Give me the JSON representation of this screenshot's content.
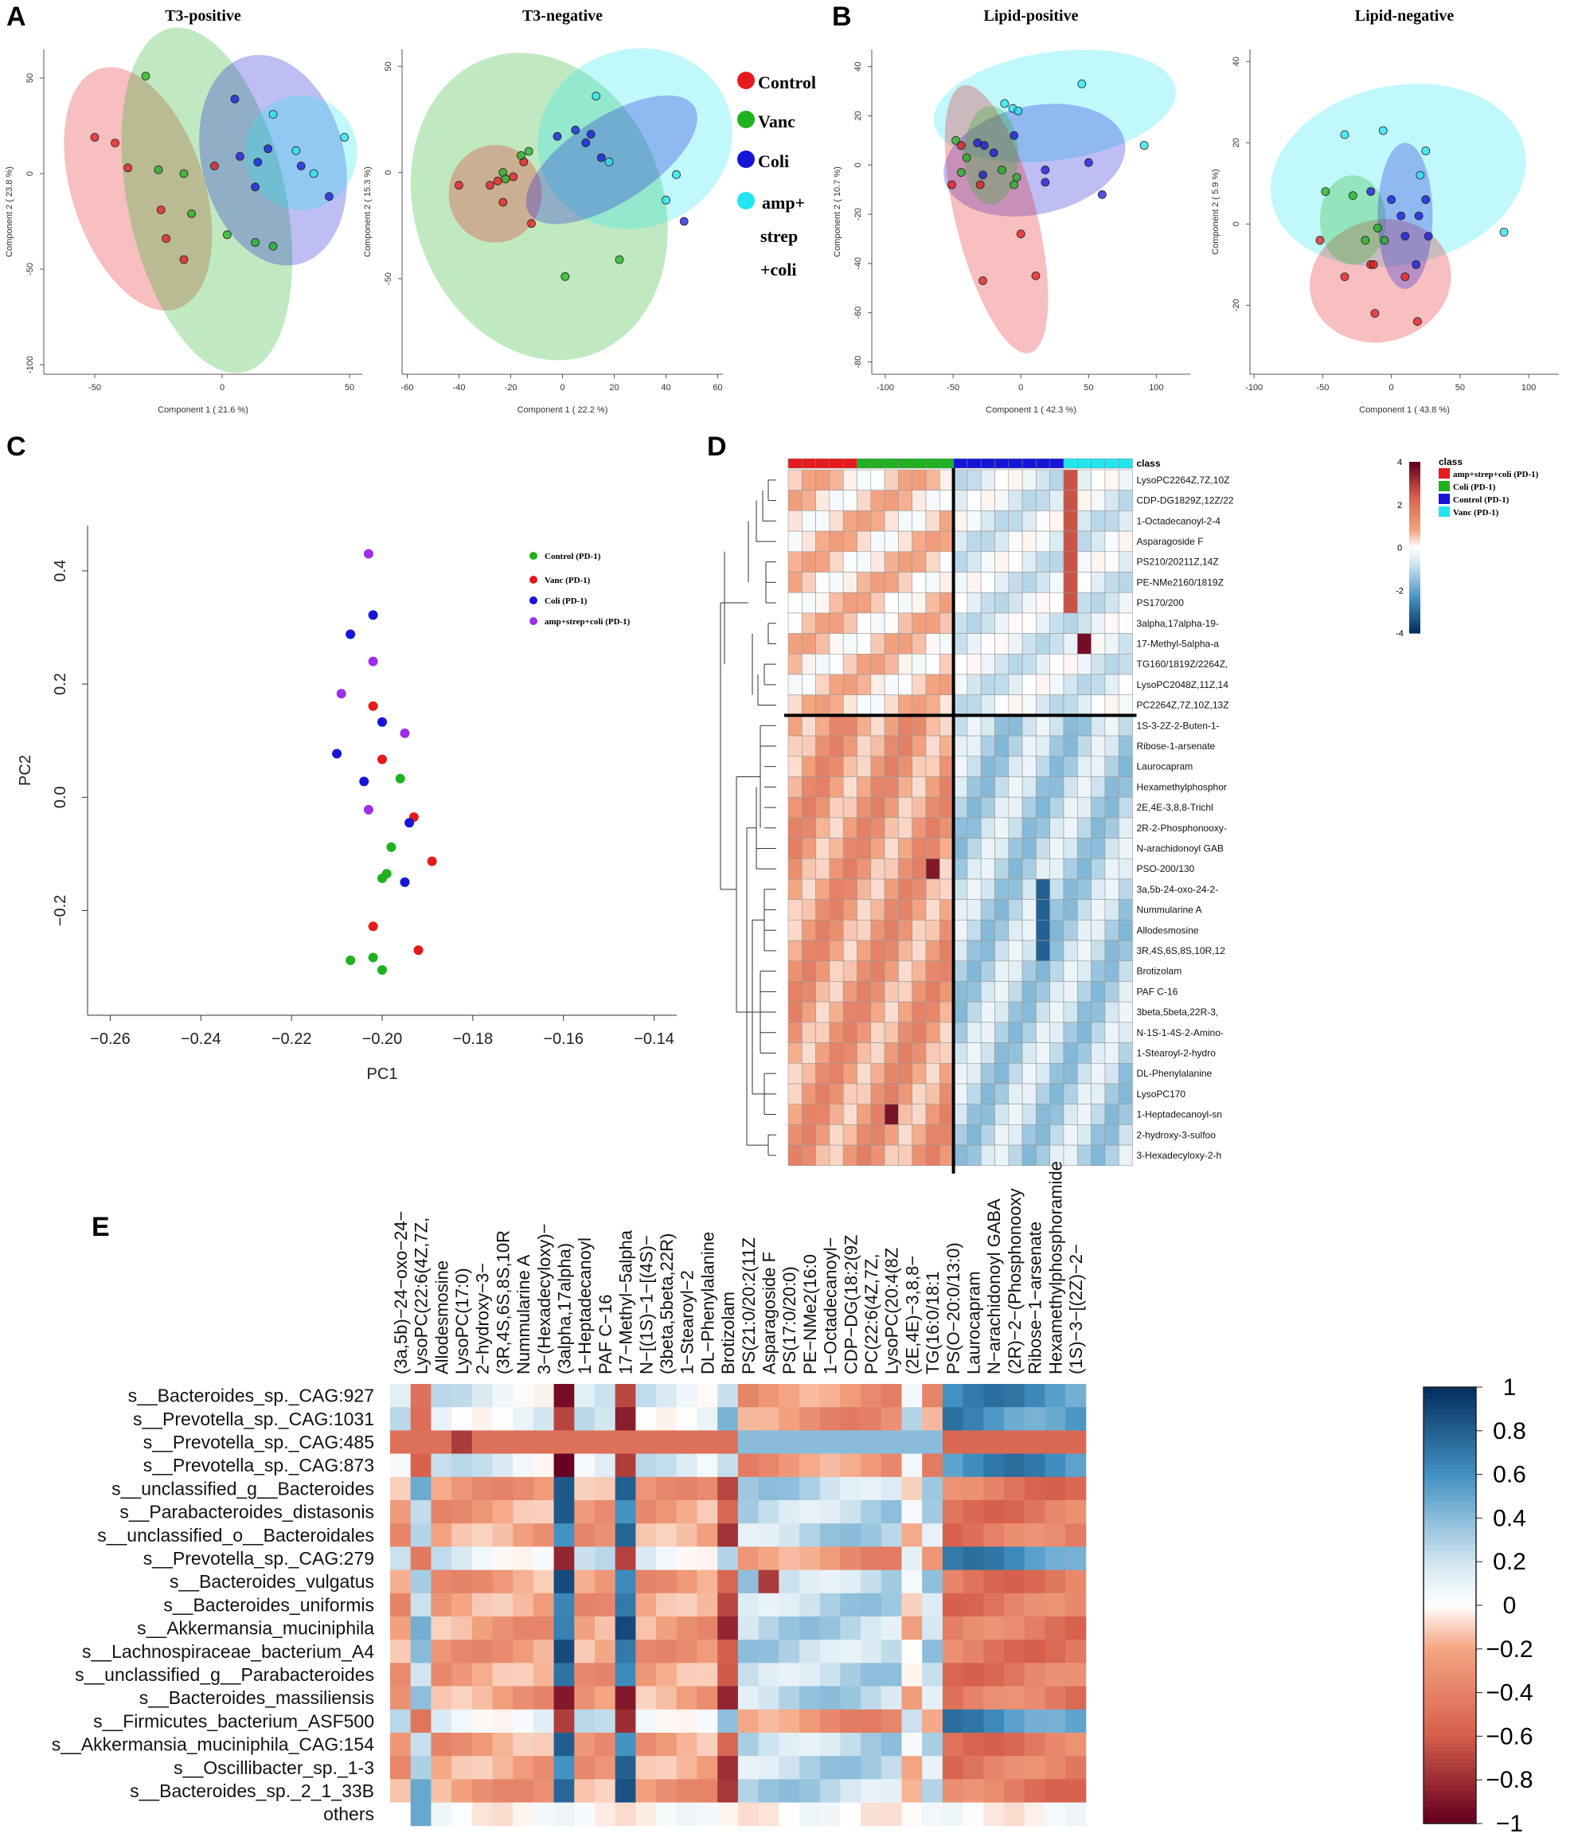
{
  "panels": {
    "a": "A",
    "b": "B",
    "c": "C",
    "d": "D",
    "e": "E"
  },
  "colors": {
    "red": "#e41a1c",
    "green": "#1fb11f",
    "blue": "#1515d8",
    "cyan": "#22e5f0",
    "purple": "#9b30e8"
  },
  "legend_a": [
    "Control",
    "Vanc",
    "Coli",
    "amp+",
    "strep",
    "+coli"
  ],
  "chart_data": [
    {
      "type": "scatter",
      "title": "T3-positive",
      "xlabel": "Component 1 ( 21.6 %)",
      "ylabel": "Component 2 ( 23.8 %)",
      "xlim": [
        -70,
        55
      ],
      "ylim": [
        -105,
        65
      ],
      "xticks": [
        -50,
        0,
        50
      ],
      "yticks": [
        -100,
        -50,
        0,
        50
      ],
      "series": [
        {
          "name": "red",
          "points": [
            [
              -50,
              19
            ],
            [
              -42,
              16
            ],
            [
              -37,
              3
            ],
            [
              -24,
              -19
            ],
            [
              -22,
              -34
            ],
            [
              -15,
              -45
            ],
            [
              -3,
              4
            ]
          ]
        },
        {
          "name": "green",
          "points": [
            [
              -30,
              51
            ],
            [
              -25,
              2
            ],
            [
              -15,
              0
            ],
            [
              -12,
              -21
            ],
            [
              2,
              -32
            ],
            [
              13,
              -36
            ],
            [
              20,
              -38
            ]
          ]
        },
        {
          "name": "blue",
          "points": [
            [
              5,
              39
            ],
            [
              7,
              9
            ],
            [
              13,
              -7
            ],
            [
              14,
              6
            ],
            [
              18,
              13
            ],
            [
              31,
              4
            ],
            [
              42,
              -12
            ]
          ]
        },
        {
          "name": "cyan",
          "points": [
            [
              20,
              31
            ],
            [
              29,
              12
            ],
            [
              36,
              0
            ],
            [
              48,
              19
            ]
          ]
        }
      ],
      "ellipses": [
        {
          "c": "red",
          "cx": -33,
          "cy": -8,
          "rx": 26,
          "ry": 66,
          "rot": -18
        },
        {
          "c": "green",
          "cx": -6,
          "cy": -14,
          "rx": 31,
          "ry": 92,
          "rot": -12
        },
        {
          "c": "blue",
          "cx": 20,
          "cy": 7,
          "rx": 28,
          "ry": 56,
          "rot": -14
        },
        {
          "c": "cyan",
          "cx": 31,
          "cy": 11,
          "rx": 22,
          "ry": 30,
          "rot": 0
        }
      ]
    },
    {
      "type": "scatter",
      "title": "T3-negative",
      "xlabel": "Component 1 ( 22.2 %)",
      "ylabel": "Component 2 ( 15.3 %)",
      "xlim": [
        -62,
        62
      ],
      "ylim": [
        -95,
        58
      ],
      "xticks": [
        -60,
        -40,
        -20,
        0,
        20,
        40,
        60
      ],
      "yticks": [
        -50,
        0,
        50
      ],
      "series": [
        {
          "name": "red",
          "points": [
            [
              -40,
              -6
            ],
            [
              -28,
              -6
            ],
            [
              -25,
              -4
            ],
            [
              -23,
              -14
            ],
            [
              -19,
              -2
            ],
            [
              -15,
              5
            ],
            [
              -12,
              -24
            ]
          ]
        },
        {
          "name": "green",
          "points": [
            [
              -23,
              0
            ],
            [
              -22,
              -3
            ],
            [
              -16,
              8
            ],
            [
              -13,
              10
            ],
            [
              1,
              -49
            ],
            [
              22,
              -41
            ]
          ]
        },
        {
          "name": "blue",
          "points": [
            [
              -2,
              17
            ],
            [
              5,
              20
            ],
            [
              9,
              14
            ],
            [
              11,
              18
            ],
            [
              15,
              7
            ],
            [
              47,
              -23
            ]
          ]
        },
        {
          "name": "cyan",
          "points": [
            [
              13,
              36
            ],
            [
              18,
              5
            ],
            [
              40,
              -13
            ],
            [
              44,
              -1
            ]
          ]
        }
      ],
      "ellipses": [
        {
          "c": "green",
          "cx": -9,
          "cy": -16,
          "rx": 48,
          "ry": 74,
          "rot": -20
        },
        {
          "c": "red",
          "cx": -26,
          "cy": -10,
          "rx": 18,
          "ry": 23,
          "rot": 0
        },
        {
          "c": "cyan",
          "cx": 28,
          "cy": 16,
          "rx": 38,
          "ry": 42,
          "rot": -20
        },
        {
          "c": "blue",
          "cx": 19,
          "cy": 6,
          "rx": 38,
          "ry": 20,
          "rot": -33
        }
      ]
    },
    {
      "type": "scatter",
      "title": "Lipid-positive",
      "xlabel": "Component 1 ( 42.3 %)",
      "ylabel": "Component 2 ( 10.7 %)",
      "xlim": [
        -110,
        125
      ],
      "ylim": [
        -85,
        47
      ],
      "xticks": [
        -100,
        -50,
        0,
        50,
        100
      ],
      "yticks": [
        -80,
        -60,
        -40,
        -20,
        0,
        20,
        40
      ],
      "series": [
        {
          "name": "red",
          "points": [
            [
              -51,
              -8
            ],
            [
              -44,
              8
            ],
            [
              -30,
              -8
            ],
            [
              -28,
              -47
            ],
            [
              0,
              -28
            ],
            [
              11,
              -45
            ]
          ]
        },
        {
          "name": "green",
          "points": [
            [
              -48,
              10
            ],
            [
              -44,
              -3
            ],
            [
              -40,
              3
            ],
            [
              -14,
              -2
            ],
            [
              -5,
              -8
            ],
            [
              -3,
              -5
            ]
          ]
        },
        {
          "name": "blue",
          "points": [
            [
              -32,
              9
            ],
            [
              -28,
              -4
            ],
            [
              -27,
              8
            ],
            [
              -20,
              5
            ],
            [
              -5,
              12
            ],
            [
              18,
              -7
            ],
            [
              18,
              -2
            ],
            [
              50,
              1
            ],
            [
              60,
              -12
            ]
          ]
        },
        {
          "name": "cyan",
          "points": [
            [
              -12,
              25
            ],
            [
              -6,
              23
            ],
            [
              -2,
              22
            ],
            [
              45,
              33
            ],
            [
              91,
              8
            ]
          ]
        }
      ],
      "ellipses": [
        {
          "c": "cyan",
          "cx": 25,
          "cy": 24,
          "rx": 90,
          "ry": 22,
          "rot": -8
        },
        {
          "c": "blue",
          "cx": 10,
          "cy": 2,
          "rx": 68,
          "ry": 22,
          "rot": -12
        },
        {
          "c": "red",
          "cx": -18,
          "cy": -22,
          "rx": 30,
          "ry": 56,
          "rot": -14
        },
        {
          "c": "green",
          "cx": -22,
          "cy": 4,
          "rx": 20,
          "ry": 20,
          "rot": 0
        }
      ]
    },
    {
      "type": "scatter",
      "title": "Lipid-negative",
      "xlabel": "Component 1 ( 43.8 %)",
      "ylabel": "Component 2 ( 5.9 %)",
      "xlim": [
        -103,
        122
      ],
      "ylim": [
        -37,
        43
      ],
      "xticks": [
        -100,
        -50,
        0,
        50,
        100
      ],
      "yticks": [
        -20,
        0,
        20,
        40
      ],
      "series": [
        {
          "name": "red",
          "points": [
            [
              -52,
              -4
            ],
            [
              -34,
              -13
            ],
            [
              -15,
              -10
            ],
            [
              -13,
              -10
            ],
            [
              -12,
              -22
            ],
            [
              10,
              -13
            ],
            [
              19,
              -24
            ]
          ]
        },
        {
          "name": "green",
          "points": [
            [
              -48,
              8
            ],
            [
              -28,
              7
            ],
            [
              -19,
              -4
            ],
            [
              -10,
              -1
            ],
            [
              -5,
              -4
            ]
          ]
        },
        {
          "name": "blue",
          "points": [
            [
              -15,
              8
            ],
            [
              0,
              6
            ],
            [
              7,
              2
            ],
            [
              10,
              -3
            ],
            [
              18,
              -10
            ],
            [
              20,
              2
            ],
            [
              25,
              6
            ],
            [
              27,
              -3
            ]
          ]
        },
        {
          "name": "cyan",
          "points": [
            [
              -34,
              22
            ],
            [
              -6,
              23
            ],
            [
              25,
              18
            ],
            [
              21,
              12
            ],
            [
              82,
              -2
            ]
          ]
        }
      ],
      "ellipses": [
        {
          "c": "cyan",
          "cx": 5,
          "cy": 12,
          "rx": 94,
          "ry": 22,
          "rot": -12
        },
        {
          "c": "red",
          "cx": -8,
          "cy": -14,
          "rx": 52,
          "ry": 15,
          "rot": -15
        },
        {
          "c": "green",
          "cx": -28,
          "cy": 1,
          "rx": 24,
          "ry": 11,
          "rot": 0
        },
        {
          "c": "blue",
          "cx": 10,
          "cy": 2,
          "rx": 20,
          "ry": 18,
          "rot": 0
        }
      ]
    },
    {
      "type": "scatter",
      "xlabel": "PC1",
      "ylabel": "PC2",
      "xlim": [
        -0.265,
        -0.135
      ],
      "ylim": [
        -0.385,
        0.48
      ],
      "xticks": [
        -0.26,
        -0.24,
        -0.22,
        -0.2,
        -0.18,
        -0.16,
        -0.14
      ],
      "yticks": [
        -0.2,
        0.0,
        0.2,
        0.4
      ],
      "legend": [
        "Control (PD-1)",
        "Vanc (PD-1)",
        "Coli (PD-1)",
        "amp+strep+coli (PD-1)"
      ],
      "series": [
        {
          "name": "Control (PD-1)",
          "c": "green",
          "points": [
            [
              -0.196,
              0.033
            ],
            [
              -0.198,
              -0.088
            ],
            [
              -0.199,
              -0.135
            ],
            [
              -0.2,
              -0.143
            ],
            [
              -0.2,
              -0.305
            ],
            [
              -0.202,
              -0.283
            ],
            [
              -0.207,
              -0.288
            ]
          ]
        },
        {
          "name": "Vanc (PD-1)",
          "c": "red",
          "points": [
            [
              -0.202,
              0.161
            ],
            [
              -0.2,
              0.067
            ],
            [
              -0.193,
              -0.035
            ],
            [
              -0.189,
              -0.113
            ],
            [
              -0.202,
              -0.228
            ],
            [
              -0.192,
              -0.27
            ]
          ]
        },
        {
          "name": "Coli (PD-1)",
          "c": "blue",
          "points": [
            [
              -0.202,
              0.322
            ],
            [
              -0.207,
              0.288
            ],
            [
              -0.2,
              0.133
            ],
            [
              -0.21,
              0.077
            ],
            [
              -0.204,
              0.028
            ],
            [
              -0.194,
              -0.045
            ],
            [
              -0.195,
              -0.15
            ]
          ]
        },
        {
          "name": "amp+strep+coli (PD-1)",
          "c": "purple",
          "points": [
            [
              -0.203,
              0.43
            ],
            [
              -0.202,
              0.24
            ],
            [
              -0.209,
              0.183
            ],
            [
              -0.195,
              0.113
            ],
            [
              -0.203,
              -0.022
            ]
          ]
        }
      ]
    },
    {
      "type": "heatmap",
      "name": "D",
      "class_header": "class",
      "legend_title": "class",
      "legend": [
        "amp+strep+coli (PD-1)",
        "Coli (PD-1)",
        "Control (PD-1)",
        "Vanc (PD-1)"
      ],
      "scale_ticks": [
        "4",
        "2",
        "0",
        "-2",
        "-4"
      ],
      "column_classes": [
        "red",
        "red",
        "red",
        "red",
        "red",
        "green",
        "green",
        "green",
        "green",
        "green",
        "green",
        "green",
        "blue",
        "blue",
        "blue",
        "blue",
        "blue",
        "blue",
        "blue",
        "blue",
        "cyan",
        "cyan",
        "cyan",
        "cyan",
        "cyan"
      ],
      "rows": [
        "LysoPC2264Z,7Z,10Z",
        "CDP-DG1829Z,12Z/22",
        "1-Octadecanoyl-2-4",
        "Asparagoside F",
        "PS210/20211Z,14Z",
        "PE-NMe2160/1819Z",
        "PS170/200",
        "3alpha,17alpha-19-",
        "17-Methyl-5alpha-a",
        "TG160/1819Z/2264Z,",
        "LysoPC2048Z,11Z,14",
        "PC2264Z,7Z,10Z,13Z",
        "1S-3-2Z-2-Buten-1-",
        "Ribose-1-arsenate",
        "Laurocapram",
        "Hexamethylphosphor",
        "2E,4E-3,8,8-Trichl",
        "2R-2-Phosphonooxy-",
        "N-arachidonoyl GAB",
        "PSO-200/130",
        "3a,5b-24-oxo-24-2-",
        "Nummularine A",
        "Allodesmosine",
        "3R,4S,6S,8S,10R,12",
        "Brotizolam",
        "PAF C-16",
        "3beta,5beta,22R-3,",
        "N-1S-1-4S-2-Amino-",
        "1-Stearoyl-2-hydro",
        "DL-Phenylalanine",
        "LysoPC170",
        "1-Heptadecanoyl-sn",
        "2-hydroxy-3-sulfoo",
        "3-Hexadecyloxy-2-h"
      ]
    },
    {
      "type": "heatmap",
      "name": "E",
      "scale_ticks": [
        "1",
        "0.8",
        "0.6",
        "0.4",
        "0.2",
        "0",
        "−0.2",
        "−0.4",
        "−0.6",
        "−0.8",
        "−1"
      ],
      "columns": [
        "(3a,5b)−24−oxo−24−",
        "LysoPC(22:6(4Z,7Z,",
        "Allodesmosine",
        "LysoPC(17:0)",
        "2−hydroxy−3−",
        "(3R,4S,6S,8S,10R",
        "Nummularine A",
        "3−(Hexadecyloxy)−",
        "(3alpha,17alpha)",
        "1−Heptadecanoyl",
        "PAF C−16",
        "17−Methyl−5alpha",
        "N−[(1S)−1−[(4S)−",
        "(3beta,5beta,22R)",
        "1−Stearoyl−2",
        "DL−Phenylalanine",
        "Brotizolam",
        "PS(21:0/20:2(11Z",
        "Asparagoside F",
        "PS(17:0/20:0)",
        "PE−NMe2(16:0",
        "1−Octadecanoyl−",
        "CDP−DG(18:2(9Z",
        "PC(22:6(4Z,7Z,",
        "LysoPC(20:4(8Z",
        "(2E,4E)−3,8,8−",
        "TG(16:0/18:1",
        "PS(O−20:0/13:0)",
        "Laurocapram",
        "N−arachidonoyl GABA",
        "(2R)−2−(Phosphonooxy",
        "Ribose−1−arsenate",
        "Hexamethylphosphoramide",
        "(1S)−3−[(2Z)−2−"
      ],
      "rows": [
        "s__Bacteroides_sp._CAG:927",
        "s__Prevotella_sp._CAG:1031",
        "s__Prevotella_sp._CAG:485",
        "s__Prevotella_sp._CAG:873",
        "s__unclassified_g__Bacteroides",
        "s__Parabacteroides_distasonis",
        "s__unclassified_o__Bacteroidales",
        "s__Prevotella_sp._CAG:279",
        "s__Bacteroides_vulgatus",
        "s__Bacteroides_uniformis",
        "s__Akkermansia_muciniphila",
        "s__Lachnospiraceae_bacterium_A4",
        "s__unclassified_g__Parabacteroides",
        "s__Bacteroides_massiliensis",
        "s__Firmicutes_bacterium_ASF500",
        "s__Akkermansia_muciniphila_CAG:154",
        "s__Oscillibacter_sp._1-3",
        "s__Bacteroides_sp._2_1_33B",
        "others"
      ]
    }
  ]
}
